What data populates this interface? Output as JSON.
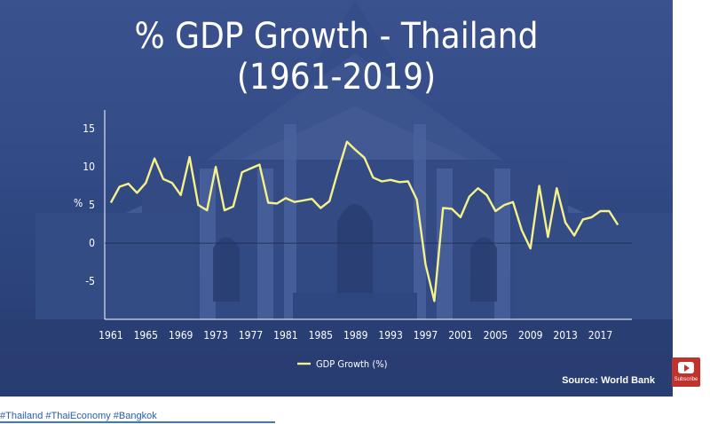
{
  "title_line1": "% GDP Growth - Thailand",
  "title_line2": "(1961-2019)",
  "source": "Source: World Bank",
  "hashtags": "#Thailand #ThaiEconomy #Bangkok",
  "subscribe_label": "Subscribe",
  "colors": {
    "line": "#f6f28a",
    "text": "#ffffff"
  },
  "chart_data": {
    "type": "line",
    "xlabel": "",
    "ylabel": "%",
    "ylim": [
      -10,
      17
    ],
    "yticks": [
      -5,
      0,
      5,
      10,
      15
    ],
    "xticks": [
      1961,
      1965,
      1969,
      1973,
      1977,
      1981,
      1985,
      1989,
      1993,
      1997,
      2001,
      2005,
      2009,
      2013,
      2017
    ],
    "legend": "bottom-center",
    "series": [
      {
        "name": "GDP Growth (%)",
        "x": [
          1961,
          1962,
          1963,
          1964,
          1965,
          1966,
          1967,
          1968,
          1969,
          1970,
          1971,
          1972,
          1973,
          1974,
          1975,
          1976,
          1977,
          1978,
          1979,
          1980,
          1981,
          1982,
          1983,
          1984,
          1985,
          1986,
          1987,
          1988,
          1989,
          1990,
          1991,
          1992,
          1993,
          1994,
          1995,
          1996,
          1997,
          1998,
          1999,
          2000,
          2001,
          2002,
          2003,
          2004,
          2005,
          2006,
          2007,
          2008,
          2009,
          2010,
          2011,
          2012,
          2013,
          2014,
          2015,
          2016,
          2017,
          2018,
          2019
        ],
        "y": [
          5.3,
          7.4,
          7.8,
          6.6,
          7.9,
          11.1,
          8.4,
          7.9,
          6.3,
          11.3,
          5.0,
          4.3,
          10.0,
          4.3,
          4.8,
          9.3,
          9.8,
          10.3,
          5.3,
          5.2,
          5.9,
          5.4,
          5.6,
          5.8,
          4.6,
          5.5,
          9.5,
          13.3,
          12.2,
          11.2,
          8.6,
          8.1,
          8.3,
          8.0,
          8.1,
          5.7,
          -2.8,
          -7.6,
          4.6,
          4.5,
          3.4,
          6.1,
          7.2,
          6.3,
          4.2,
          5.0,
          5.4,
          1.7,
          -0.7,
          7.5,
          0.8,
          7.2,
          2.7,
          1.0,
          3.1,
          3.4,
          4.2,
          4.2,
          2.4
        ]
      }
    ]
  }
}
